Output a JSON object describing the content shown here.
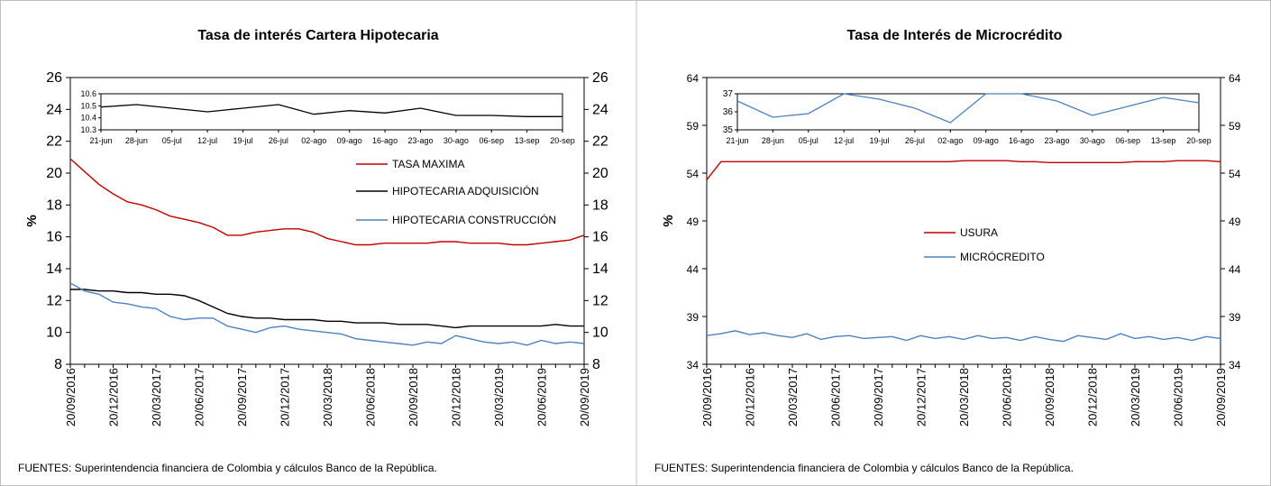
{
  "chart_data": [
    {
      "type": "line",
      "title": "Tasa de interés Cartera Hipotecaria",
      "ylabel": "%",
      "categories": [
        "20/09/2016",
        null,
        null,
        "20/12/2016",
        null,
        null,
        "20/03/2017",
        null,
        null,
        "20/06/2017",
        null,
        null,
        "20/09/2017",
        null,
        null,
        "20/12/2017",
        null,
        null,
        "20/03/2018",
        null,
        null,
        "20/06/2018",
        null,
        null,
        "20/09/2018",
        null,
        null,
        "20/12/2018",
        null,
        null,
        "20/03/2019",
        null,
        null,
        "20/06/2019",
        null,
        null,
        "20/09/2019"
      ],
      "series": [
        {
          "name": "TASA MAXIMA",
          "color": "#c00000",
          "values": [
            20.9,
            20.1,
            19.3,
            18.7,
            18.2,
            18.0,
            17.7,
            17.3,
            17.1,
            16.9,
            16.6,
            16.1,
            16.1,
            16.3,
            16.4,
            16.5,
            16.5,
            16.3,
            15.9,
            15.7,
            15.5,
            15.5,
            15.6,
            15.6,
            15.6,
            15.6,
            15.7,
            15.7,
            15.6,
            15.6,
            15.6,
            15.5,
            15.5,
            15.6,
            15.7,
            15.8,
            16.1
          ]
        },
        {
          "name": "HIPOTECARIA ADQUISICIÓN",
          "color": "#000000",
          "values": [
            12.7,
            12.7,
            12.6,
            12.6,
            12.5,
            12.5,
            12.4,
            12.4,
            12.3,
            12.0,
            11.6,
            11.2,
            11.0,
            10.9,
            10.9,
            10.8,
            10.8,
            10.8,
            10.7,
            10.7,
            10.6,
            10.6,
            10.6,
            10.5,
            10.5,
            10.5,
            10.4,
            10.3,
            10.4,
            10.4,
            10.4,
            10.4,
            10.4,
            10.4,
            10.5,
            10.4,
            10.4
          ]
        },
        {
          "name": "HIPOTECARIA CONSTRUCCIÓN",
          "color": "#4f81bd",
          "values": [
            13.1,
            12.6,
            12.4,
            11.9,
            11.8,
            11.6,
            11.5,
            11.0,
            10.8,
            10.9,
            10.9,
            10.4,
            10.2,
            10.0,
            10.3,
            10.4,
            10.2,
            10.1,
            10.0,
            9.9,
            9.6,
            9.5,
            9.4,
            9.3,
            9.2,
            9.4,
            9.3,
            9.8,
            9.6,
            9.4,
            9.3,
            9.4,
            9.2,
            9.5,
            9.3,
            9.4,
            9.3
          ]
        }
      ],
      "ylim": [
        8,
        26
      ],
      "yticks": [
        8,
        10,
        12,
        14,
        16,
        18,
        20,
        22,
        24,
        26
      ],
      "y2lim": [
        8,
        26
      ],
      "y2ticks": [
        8,
        10,
        12,
        14,
        16,
        18,
        20,
        22,
        24,
        26
      ],
      "inset": {
        "categories": [
          "21-jun",
          "28-jun",
          "05-jul",
          "12-jul",
          "19-jul",
          "26-jul",
          "02-ago",
          "09-ago",
          "16-ago",
          "23-ago",
          "30-ago",
          "06-sep",
          "13-sep",
          "20-sep"
        ],
        "series": [
          {
            "color": "#000000",
            "values": [
              10.49,
              10.51,
              10.48,
              10.45,
              10.48,
              10.51,
              10.43,
              10.46,
              10.44,
              10.48,
              10.42,
              10.42,
              10.41,
              10.41
            ]
          }
        ],
        "ylim": [
          10.3,
          10.6
        ],
        "yticks": [
          10.3,
          10.4,
          10.5,
          10.6
        ]
      },
      "source": "FUENTES: Superintendencia financiera de Colombia y cálculos Banco de la República."
    },
    {
      "type": "line",
      "title": "Tasa de Interés de Microcrédito",
      "ylabel": "%",
      "categories": [
        "20/09/2016",
        null,
        null,
        "20/12/2016",
        null,
        null,
        "20/03/2017",
        null,
        null,
        "20/06/2017",
        null,
        null,
        "20/09/2017",
        null,
        null,
        "20/12/2017",
        null,
        null,
        "20/03/2018",
        null,
        null,
        "20/06/2018",
        null,
        null,
        "20/09/2018",
        null,
        null,
        "20/12/2018",
        null,
        null,
        "20/03/2019",
        null,
        null,
        "20/06/2019",
        null,
        null,
        "20/09/2019"
      ],
      "series": [
        {
          "name": "USURA",
          "color": "#c00000",
          "values": [
            53.3,
            55.2,
            55.2,
            55.2,
            55.2,
            55.2,
            55.2,
            55.2,
            55.2,
            55.2,
            55.2,
            55.2,
            55.2,
            55.2,
            55.2,
            55.2,
            55.2,
            55.2,
            55.3,
            55.3,
            55.3,
            55.3,
            55.2,
            55.2,
            55.1,
            55.1,
            55.1,
            55.1,
            55.1,
            55.1,
            55.2,
            55.2,
            55.2,
            55.3,
            55.3,
            55.3,
            55.2
          ]
        },
        {
          "name": "MICRÓCREDITO",
          "color": "#4f81bd",
          "values": [
            37.0,
            37.2,
            37.5,
            37.1,
            37.3,
            37.0,
            36.8,
            37.2,
            36.6,
            36.9,
            37.0,
            36.7,
            36.8,
            36.9,
            36.5,
            37.0,
            36.7,
            36.9,
            36.6,
            37.0,
            36.7,
            36.8,
            36.5,
            36.9,
            36.6,
            36.4,
            37.0,
            36.8,
            36.6,
            37.2,
            36.7,
            36.9,
            36.6,
            36.8,
            36.5,
            36.9,
            36.7
          ]
        }
      ],
      "ylim": [
        34,
        64
      ],
      "yticks": [
        34,
        39,
        44,
        49,
        54,
        59,
        64
      ],
      "y2lim": [
        34,
        64
      ],
      "y2ticks": [
        34,
        39,
        44,
        49,
        54,
        59,
        64
      ],
      "inset": {
        "categories": [
          "21-jun",
          "28-jun",
          "05-jul",
          "12-jul",
          "19-jul",
          "26-jul",
          "02-ago",
          "09-ago",
          "16-ago",
          "23-ago",
          "30-ago",
          "06-sep",
          "13-sep",
          "20-sep"
        ],
        "series": [
          {
            "color": "#4f81bd",
            "values": [
              36.6,
              35.7,
              35.9,
              37.0,
              36.7,
              36.2,
              35.4,
              37.0,
              37.0,
              36.6,
              35.8,
              36.3,
              36.8,
              36.5
            ]
          }
        ],
        "ylim": [
          35,
          37
        ],
        "yticks": [
          35,
          36,
          37
        ]
      },
      "source": "FUENTES: Superintendencia financiera de Colombia y cálculos Banco de la República."
    }
  ]
}
